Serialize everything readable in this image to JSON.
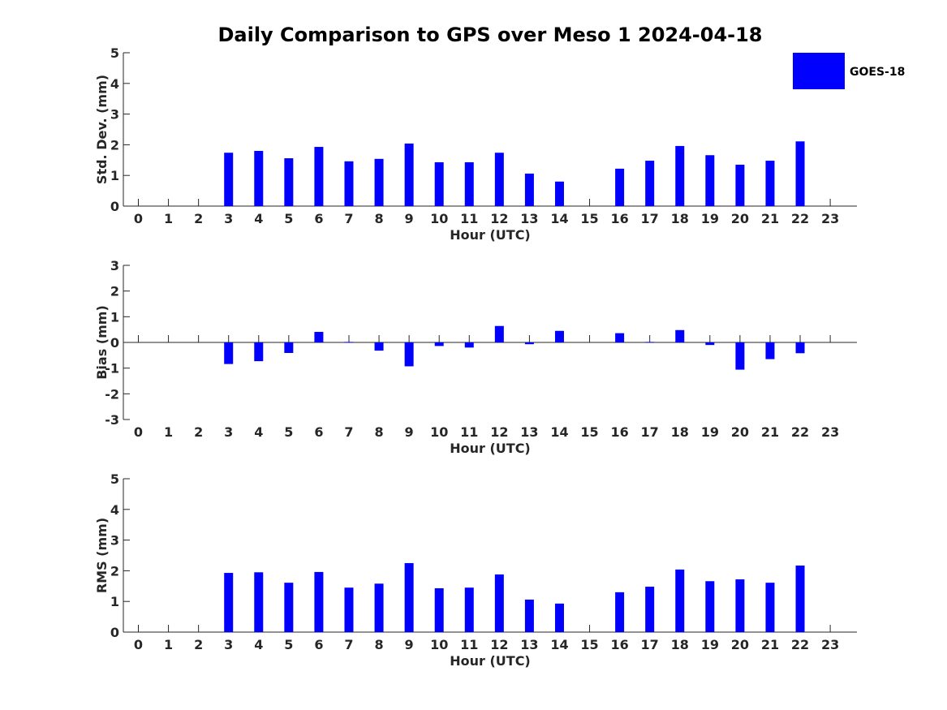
{
  "figure_title": "Daily Comparison to GPS over Meso 1 2024-04-18",
  "legend": {
    "label": "GOES-18",
    "color": "#0000ff",
    "placement": "top-right"
  },
  "chart_data": [
    {
      "type": "bar",
      "name": "std_dev",
      "title": "",
      "xlabel": "Hour (UTC)",
      "ylabel": "Std. Dev. (mm)",
      "ylim": [
        0,
        5
      ],
      "yticks": [
        "0",
        "1",
        "2",
        "3",
        "4",
        "5"
      ],
      "categories": [
        "0",
        "1",
        "2",
        "3",
        "4",
        "5",
        "6",
        "7",
        "8",
        "9",
        "10",
        "11",
        "12",
        "13",
        "14",
        "15",
        "16",
        "17",
        "18",
        "19",
        "20",
        "21",
        "22",
        "23"
      ],
      "series": [
        {
          "name": "GOES-18",
          "color": "#0000ff",
          "values": [
            null,
            null,
            null,
            1.74,
            1.8,
            1.56,
            1.93,
            1.46,
            1.54,
            2.04,
            1.43,
            1.43,
            1.74,
            1.06,
            0.8,
            null,
            1.22,
            1.48,
            1.96,
            1.66,
            1.35,
            1.48,
            2.11,
            null
          ]
        }
      ]
    },
    {
      "type": "bar",
      "name": "bias",
      "title": "",
      "xlabel": "Hour (UTC)",
      "ylabel": "Bias (mm)",
      "ylim": [
        -3,
        3
      ],
      "yticks": [
        "-3",
        "-2",
        "-1",
        "0",
        "1",
        "2",
        "3"
      ],
      "categories": [
        "0",
        "1",
        "2",
        "3",
        "4",
        "5",
        "6",
        "7",
        "8",
        "9",
        "10",
        "11",
        "12",
        "13",
        "14",
        "15",
        "16",
        "17",
        "18",
        "19",
        "20",
        "21",
        "22",
        "23"
      ],
      "series": [
        {
          "name": "GOES-18",
          "color": "#0000ff",
          "values": [
            null,
            null,
            null,
            -0.84,
            -0.73,
            -0.41,
            0.41,
            0.02,
            -0.32,
            -0.93,
            -0.14,
            -0.2,
            0.64,
            -0.07,
            0.45,
            null,
            0.36,
            0.02,
            0.48,
            -0.1,
            -1.06,
            -0.65,
            -0.42,
            null
          ]
        }
      ]
    },
    {
      "type": "bar",
      "name": "rms",
      "title": "",
      "xlabel": "Hour (UTC)",
      "ylabel": "RMS (mm)",
      "ylim": [
        0,
        5
      ],
      "yticks": [
        "0",
        "1",
        "2",
        "3",
        "4",
        "5"
      ],
      "categories": [
        "0",
        "1",
        "2",
        "3",
        "4",
        "5",
        "6",
        "7",
        "8",
        "9",
        "10",
        "11",
        "12",
        "13",
        "14",
        "15",
        "16",
        "17",
        "18",
        "19",
        "20",
        "21",
        "22",
        "23"
      ],
      "series": [
        {
          "name": "GOES-18",
          "color": "#0000ff",
          "values": [
            null,
            null,
            null,
            1.93,
            1.95,
            1.61,
            1.96,
            1.45,
            1.58,
            2.25,
            1.43,
            1.45,
            1.88,
            1.06,
            0.93,
            null,
            1.3,
            1.48,
            2.04,
            1.66,
            1.72,
            1.61,
            2.17,
            null
          ]
        }
      ]
    }
  ]
}
